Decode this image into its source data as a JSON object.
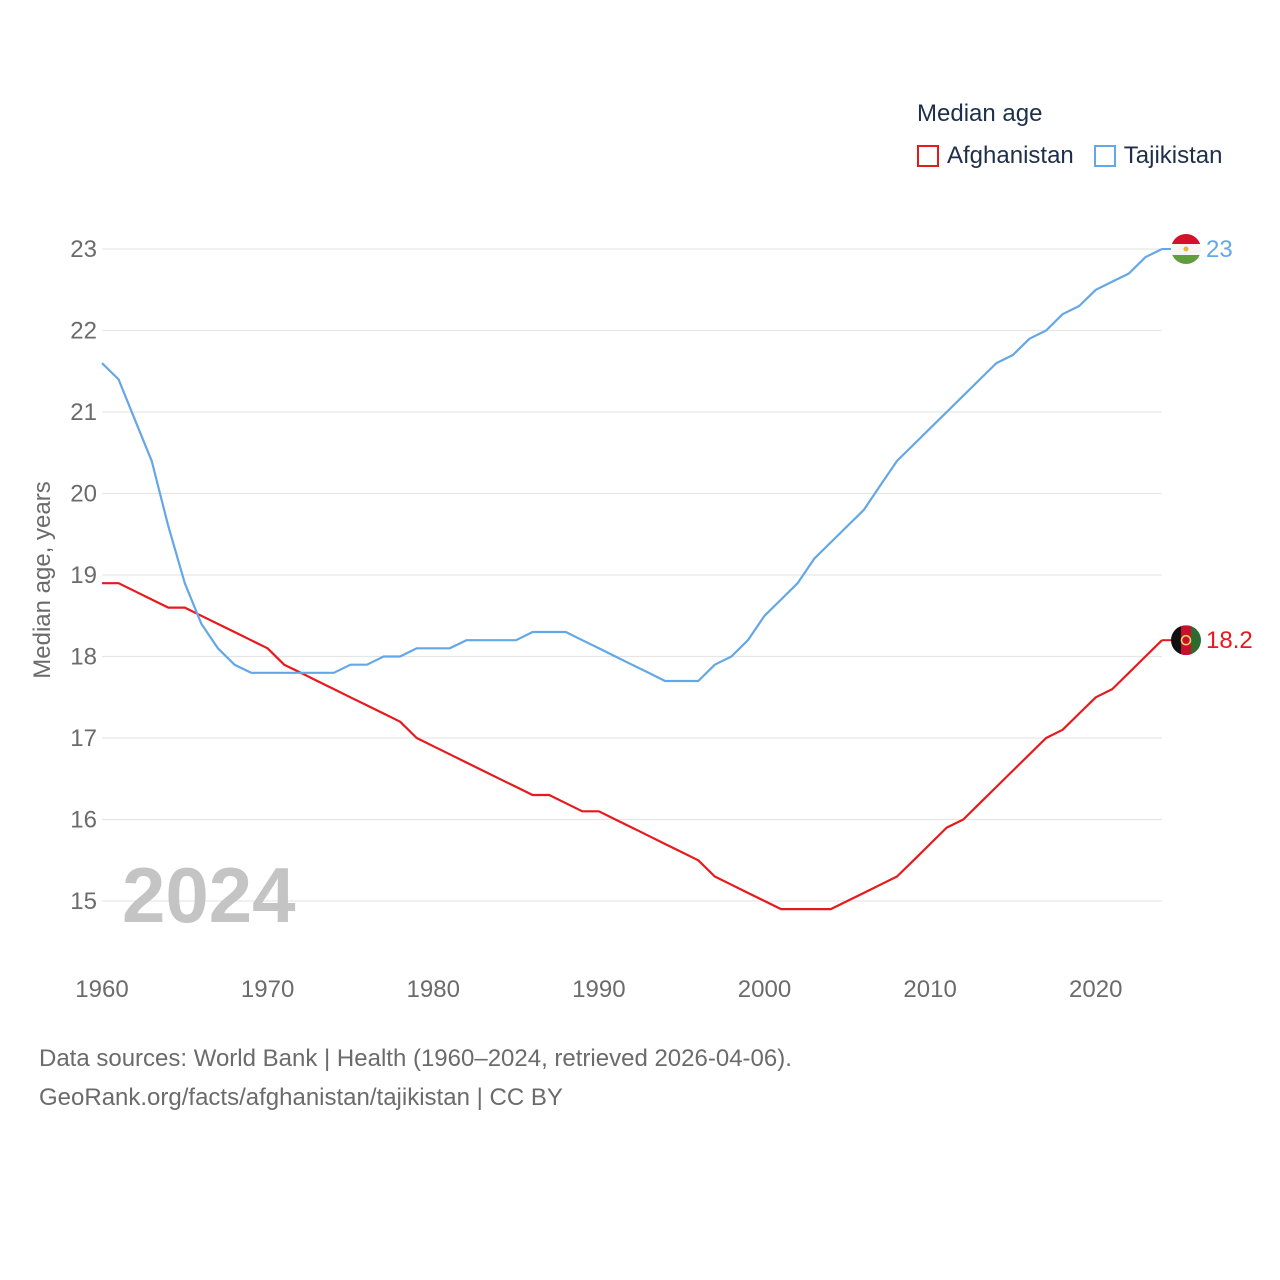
{
  "legend": {
    "title": "Median age",
    "items": [
      {
        "label": "Afghanistan",
        "color": "#e8191c"
      },
      {
        "label": "Tajikistan",
        "color": "#64a7e6"
      }
    ]
  },
  "footer": {
    "line1": "Data sources: World Bank | Health (1960–2024, retrieved 2026-04-06).",
    "line2": "GeoRank.org/facts/afghanistan/tajikistan | CC BY"
  },
  "chart_data": {
    "type": "line",
    "title": "Median age",
    "xlabel": "",
    "ylabel": "Median age, years",
    "xlim": [
      1960,
      2024
    ],
    "ylim": [
      14.2,
      23.6
    ],
    "xticks": [
      1960,
      1970,
      1980,
      1990,
      2000,
      2010,
      2020
    ],
    "yticks": [
      15,
      16,
      17,
      18,
      19,
      20,
      21,
      22,
      23
    ],
    "grid": true,
    "year_label": "2024",
    "x": [
      1960,
      1961,
      1962,
      1963,
      1964,
      1965,
      1966,
      1967,
      1968,
      1969,
      1970,
      1971,
      1972,
      1973,
      1974,
      1975,
      1976,
      1977,
      1978,
      1979,
      1980,
      1981,
      1982,
      1983,
      1984,
      1985,
      1986,
      1987,
      1988,
      1989,
      1990,
      1991,
      1992,
      1993,
      1994,
      1995,
      1996,
      1997,
      1998,
      1999,
      2000,
      2001,
      2002,
      2003,
      2004,
      2005,
      2006,
      2007,
      2008,
      2009,
      2010,
      2011,
      2012,
      2013,
      2014,
      2015,
      2016,
      2017,
      2018,
      2019,
      2020,
      2021,
      2022,
      2023,
      2024
    ],
    "series": [
      {
        "name": "Afghanistan",
        "color": "#e8191c",
        "end_label": "18.2",
        "values": [
          18.9,
          18.9,
          18.8,
          18.7,
          18.6,
          18.6,
          18.5,
          18.4,
          18.3,
          18.2,
          18.1,
          17.9,
          17.8,
          17.7,
          17.6,
          17.5,
          17.4,
          17.3,
          17.2,
          17.0,
          16.9,
          16.8,
          16.7,
          16.6,
          16.5,
          16.4,
          16.3,
          16.3,
          16.2,
          16.1,
          16.1,
          16.0,
          15.9,
          15.8,
          15.7,
          15.6,
          15.5,
          15.3,
          15.2,
          15.1,
          15.0,
          14.9,
          14.9,
          14.9,
          14.9,
          15.0,
          15.1,
          15.2,
          15.3,
          15.5,
          15.7,
          15.9,
          16.0,
          16.2,
          16.4,
          16.6,
          16.8,
          17.0,
          17.1,
          17.3,
          17.5,
          17.6,
          17.8,
          18.0,
          18.2
        ]
      },
      {
        "name": "Tajikistan",
        "color": "#64a7e6",
        "end_label": "23",
        "values": [
          21.6,
          21.4,
          20.9,
          20.4,
          19.6,
          18.9,
          18.4,
          18.1,
          17.9,
          17.8,
          17.8,
          17.8,
          17.8,
          17.8,
          17.8,
          17.9,
          17.9,
          18.0,
          18.0,
          18.1,
          18.1,
          18.1,
          18.2,
          18.2,
          18.2,
          18.2,
          18.3,
          18.3,
          18.3,
          18.2,
          18.1,
          18.0,
          17.9,
          17.8,
          17.7,
          17.7,
          17.7,
          17.9,
          18.0,
          18.2,
          18.5,
          18.7,
          18.9,
          19.2,
          19.4,
          19.6,
          19.8,
          20.1,
          20.4,
          20.6,
          20.8,
          21.0,
          21.2,
          21.4,
          21.6,
          21.7,
          21.9,
          22.0,
          22.2,
          22.3,
          22.5,
          22.6,
          22.7,
          22.9,
          23.0
        ]
      }
    ]
  }
}
